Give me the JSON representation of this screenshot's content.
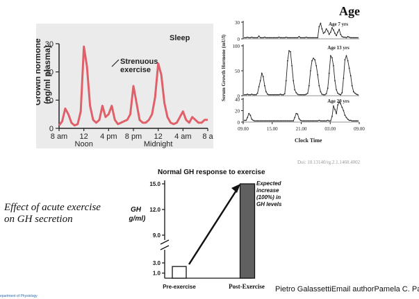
{
  "header": {
    "title": "Age"
  },
  "left_chart": {
    "ylabel_1": "Growth hormone",
    "ylabel_2": "(ng/ml plasma)",
    "sleep_label": "Sleep",
    "annotation_1": "Strenuous",
    "annotation_2": "exercise",
    "line_color": "#e0606a"
  },
  "right_chart": {
    "ylabel": "Serum Growth Hormone (mU/l)",
    "xlabel": "Clock Time"
  },
  "doi": "Doi: 10.13140/rg.2.1.1460.4002",
  "bar_chart_meta": {
    "title": "Normal GH response to exercise",
    "ylabel_1": "GH",
    "ylabel_2": "(ng/ml)",
    "annotation_1": "Expected",
    "annotation_2": "increase",
    "annotation_3": "(100%) in",
    "annotation_4": "GH levels"
  },
  "caption": {
    "line1": "Effect of acute exercise",
    "line2": "on GH secretion"
  },
  "authors": "Pietro GalassettiEmail authorPamela C. Pablico",
  "footer": "epartment of Physiology",
  "chart_data": [
    {
      "type": "line",
      "x_ticks": [
        "8 am",
        "12",
        "4 pm",
        "8 pm",
        "12",
        "4 am",
        "8 a"
      ],
      "x_sublabels": [
        "Noon",
        "Midnight"
      ],
      "y_ticks": [
        "0",
        "10",
        "20",
        "30"
      ],
      "ylim": [
        0,
        30
      ],
      "x_hours": [
        8,
        8.5,
        9,
        9.5,
        10,
        10.5,
        11,
        11.5,
        12,
        12.5,
        13,
        13.5,
        14,
        14.5,
        15,
        15.5,
        16,
        16.5,
        17,
        17.5,
        18,
        18.5,
        19,
        19.5,
        20,
        20.5,
        21,
        21.5,
        22,
        22.5,
        23,
        23.5,
        24,
        24.5,
        25,
        25.5,
        26,
        26.5,
        27,
        27.5,
        28,
        28.5,
        29,
        29.5,
        30,
        30.5,
        31,
        31.5,
        32
      ],
      "y": [
        1,
        2.5,
        7,
        5,
        2,
        1,
        1.5,
        6,
        29,
        22,
        8,
        3,
        2,
        3,
        8,
        4,
        5,
        8,
        3,
        1.5,
        2,
        2.5,
        3,
        5,
        15,
        9,
        3,
        2,
        2,
        3,
        5,
        11,
        23,
        19,
        9,
        4,
        2,
        1.5,
        2,
        4,
        6,
        3,
        2,
        4,
        3,
        2,
        2,
        3,
        3
      ]
    },
    {
      "type": "line",
      "xlabel": "Clock Time",
      "x_ticks": [
        "09.00",
        "15.00",
        "21.00",
        "03.00",
        "09.00"
      ],
      "panels": [
        {
          "label": "Age 7 yrs",
          "y_ticks": [
            "0",
            "30"
          ],
          "ylim": [
            0,
            30
          ],
          "y": [
            2,
            2,
            3,
            2,
            2,
            3,
            2,
            2,
            2,
            2,
            5,
            2,
            2,
            2,
            3,
            2,
            2,
            2,
            2,
            2,
            2,
            2,
            2,
            2,
            3,
            2,
            2,
            2,
            2,
            3,
            2,
            2,
            2,
            2,
            2,
            2,
            2,
            2,
            4,
            2,
            2,
            2,
            2,
            3,
            2,
            2,
            2,
            2,
            2,
            2,
            2,
            2,
            22,
            28,
            18,
            10,
            12,
            18,
            14,
            8,
            12,
            20,
            16,
            10,
            6,
            12,
            17,
            8,
            4,
            3,
            3,
            2,
            4,
            3,
            2,
            2,
            2,
            2,
            2,
            2
          ]
        },
        {
          "label": "Age 13 yrs",
          "y_ticks": [
            "0",
            "50",
            "100"
          ],
          "ylim": [
            0,
            100
          ],
          "y": [
            2,
            2,
            3,
            2,
            2,
            3,
            2,
            2,
            2,
            5,
            18,
            30,
            45,
            38,
            20,
            8,
            3,
            2,
            2,
            2,
            2,
            2,
            2,
            2,
            2,
            3,
            2,
            2,
            4,
            30,
            70,
            90,
            88,
            60,
            30,
            12,
            6,
            3,
            2,
            2,
            2,
            2,
            2,
            3,
            5,
            20,
            50,
            70,
            75,
            72,
            60,
            42,
            20,
            8,
            3,
            2,
            2,
            4,
            15,
            45,
            80,
            76,
            60,
            30,
            12,
            5,
            3,
            2,
            6,
            35,
            72,
            80,
            70,
            55,
            40,
            20,
            8,
            5,
            3,
            2
          ]
        },
        {
          "label": "Age 20 yrs",
          "y_ticks": [
            "0",
            "20",
            "40"
          ],
          "ylim": [
            0,
            40
          ],
          "y": [
            3,
            3,
            8,
            15,
            12,
            5,
            3,
            2,
            2,
            2,
            2,
            2,
            2,
            2,
            2,
            2,
            2,
            2,
            2,
            2,
            2,
            2,
            2,
            2,
            2,
            2,
            2,
            2,
            2,
            2,
            2,
            2,
            2,
            2,
            2,
            8,
            15,
            14,
            6,
            3,
            2,
            2,
            2,
            2,
            2,
            2,
            2,
            2,
            2,
            2,
            2,
            2,
            3,
            2,
            2,
            2,
            2,
            2,
            3,
            2,
            2,
            10,
            28,
            22,
            15,
            30,
            35,
            32,
            26,
            20,
            12,
            8,
            5,
            3,
            3,
            2,
            2,
            2,
            2,
            2
          ]
        }
      ]
    },
    {
      "type": "bar",
      "categories": [
        "Pre-exercise",
        "Post-Exercise"
      ],
      "values": [
        2.3,
        15.0
      ],
      "y_ticks": [
        "1.0",
        "3.0",
        "9.0",
        "12.0",
        "15.0"
      ],
      "ylim": [
        0,
        15
      ]
    }
  ]
}
